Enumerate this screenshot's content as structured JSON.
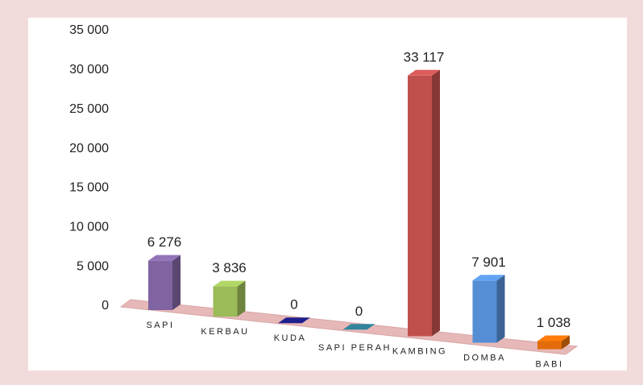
{
  "chart_data": {
    "type": "bar3d",
    "categories": [
      "SAPI",
      "KERBAU",
      "KUDA",
      "SAPI PERAH",
      "KAMBING",
      "DOMBA",
      "BABI"
    ],
    "values": [
      6276,
      3836,
      0,
      0,
      33117,
      7901,
      1038
    ],
    "value_labels": [
      "6 276",
      "3 836",
      "0",
      "0",
      "33 117",
      "7 901",
      "1 038"
    ],
    "colors": [
      "#8064a2",
      "#9bbb59",
      "#1f1f8f",
      "#31859c",
      "#c0504d",
      "#558ed5",
      "#e36c09"
    ],
    "ylim": [
      0,
      35000
    ],
    "yticks": [
      0,
      {
        "value": 5000,
        "label": "5 000"
      },
      {
        "value": 10000,
        "label": "10 000"
      },
      {
        "value": 15000,
        "label": "15 000"
      },
      {
        "value": 20000,
        "label": "20 000"
      },
      {
        "value": 25000,
        "label": "25 000"
      },
      {
        "value": 30000,
        "label": "30 000"
      },
      {
        "value": 35000,
        "label": "35 000"
      }
    ],
    "grid": false
  }
}
